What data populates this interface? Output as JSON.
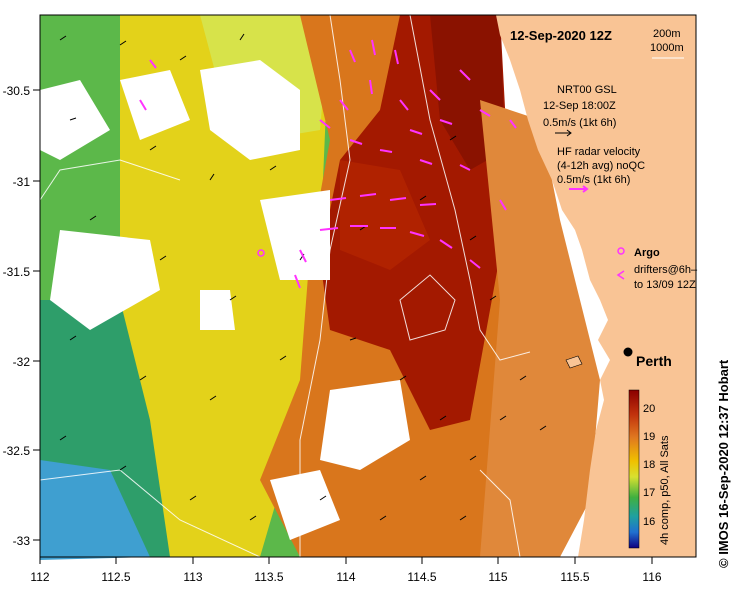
{
  "title": "12-Sep-2020 12Z",
  "depth_contours": [
    "200m",
    "1000m"
  ],
  "legend": {
    "gsl_title": "NRT00 GSL",
    "gsl_time": "12-Sep 18:00Z",
    "gsl_scale": "0.5m/s (1kt 6h)",
    "hf_title": "HF radar velocity",
    "hf_sub": "(4-12h avg) noQC",
    "hf_scale": "0.5m/s (1kt 6h)",
    "argo": "Argo",
    "drifters_1": "drifters@6h–",
    "drifters_2": "to 13/09 12Z"
  },
  "city": "Perth",
  "colorbar": {
    "label": "4h comp, p50, All Sats",
    "ticks": [
      "20",
      "19",
      "18",
      "17",
      "16"
    ]
  },
  "credit": "©  IMOS 16-Sep-2020 12:37 Hobart",
  "axes": {
    "x_ticks": [
      "112",
      "112.5",
      "113",
      "113.5",
      "114",
      "114.5",
      "115",
      "115.5",
      "116"
    ],
    "y_ticks": [
      "-30.5",
      "-31",
      "-31.5",
      "-32",
      "-32.5",
      "-33"
    ]
  },
  "colors": {
    "land": "#f9c495",
    "hf_radar": "#ff33ff",
    "gsl": "#000000",
    "sst_hot": "#a01800",
    "sst_warm": "#d96a1c",
    "sst_mid": "#e8c200",
    "sst_cool": "#3cb43c"
  }
}
